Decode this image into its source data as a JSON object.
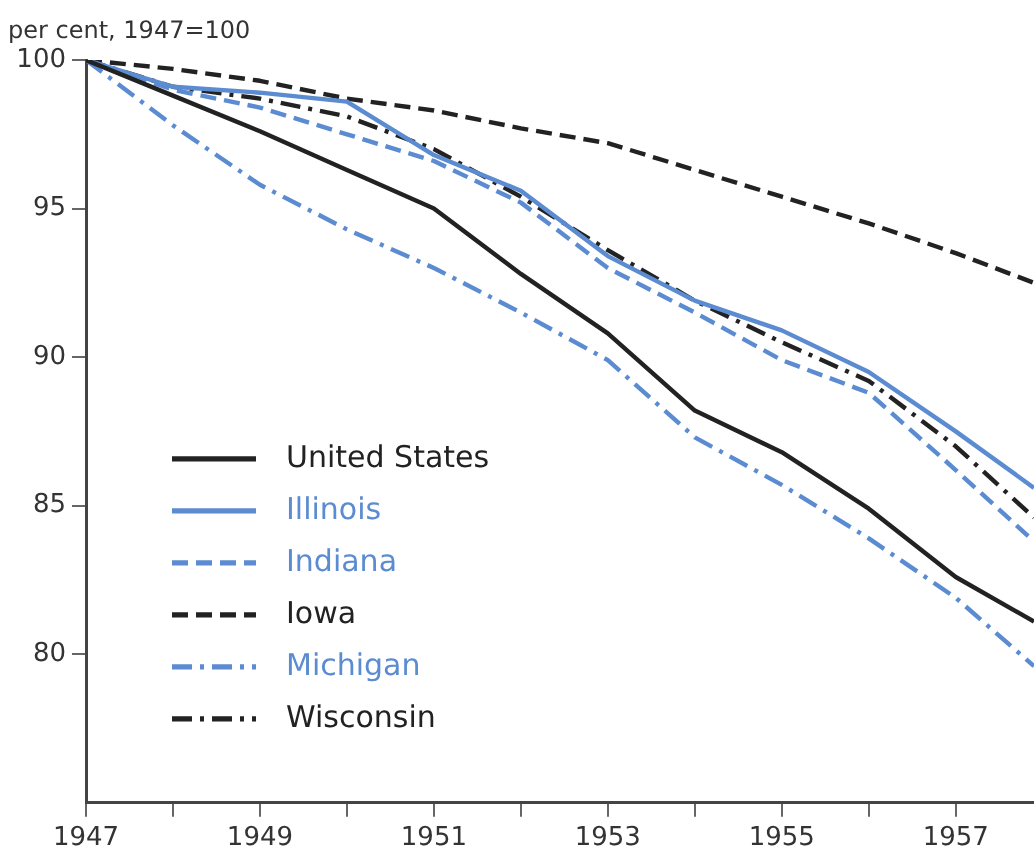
{
  "chart_data": {
    "type": "line",
    "ylabel": "per cent, 1947=100",
    "x": [
      1947,
      1948,
      1949,
      1950,
      1951,
      1952,
      1953,
      1954,
      1955,
      1956,
      1957,
      1957.9
    ],
    "series": [
      {
        "name": "United States",
        "color": "#222222",
        "line_style": "solid",
        "values": [
          100,
          98.8,
          97.6,
          96.3,
          95.0,
          92.8,
          90.8,
          88.2,
          86.8,
          84.9,
          82.6,
          81.1
        ]
      },
      {
        "name": "Illinois",
        "color": "#5b8bd0",
        "line_style": "solid",
        "values": [
          100,
          99.1,
          98.9,
          98.6,
          96.8,
          95.6,
          93.4,
          91.9,
          90.9,
          89.5,
          87.5,
          85.6
        ]
      },
      {
        "name": "Indiana",
        "color": "#5b8bd0",
        "line_style": "dashed",
        "values": [
          100,
          99.0,
          98.4,
          97.5,
          96.6,
          95.2,
          93.0,
          91.5,
          89.9,
          88.8,
          86.2,
          83.8
        ]
      },
      {
        "name": "Iowa",
        "color": "#222222",
        "line_style": "dashed",
        "values": [
          100,
          99.7,
          99.3,
          98.7,
          98.3,
          97.7,
          97.2,
          96.3,
          95.4,
          94.5,
          93.5,
          92.5
        ]
      },
      {
        "name": "Michigan",
        "color": "#5b8bd0",
        "line_style": "dashdot",
        "values": [
          100,
          97.8,
          95.8,
          94.3,
          93.0,
          91.5,
          89.9,
          87.3,
          85.7,
          83.9,
          81.9,
          79.6
        ]
      },
      {
        "name": "Wisconsin",
        "color": "#222222",
        "line_style": "dashdot",
        "values": [
          100,
          99.1,
          98.7,
          98.1,
          97.0,
          95.4,
          93.6,
          91.9,
          90.5,
          89.2,
          87.0,
          84.6
        ]
      }
    ],
    "xlim": [
      1947,
      1957.9
    ],
    "xticks": [
      1947,
      {
        "value": 1948,
        "label": null
      },
      1949,
      {
        "value": 1950,
        "label": null
      },
      1951,
      {
        "value": 1952,
        "label": null
      },
      1953,
      {
        "value": 1954,
        "label": null
      },
      1955,
      {
        "value": 1956,
        "label": null
      },
      1957
    ],
    "ylim": [
      75,
      100
    ],
    "yticks": [
      80,
      85,
      90,
      95,
      100
    ],
    "grid": false,
    "legend": "bottom left",
    "marker": "none"
  }
}
